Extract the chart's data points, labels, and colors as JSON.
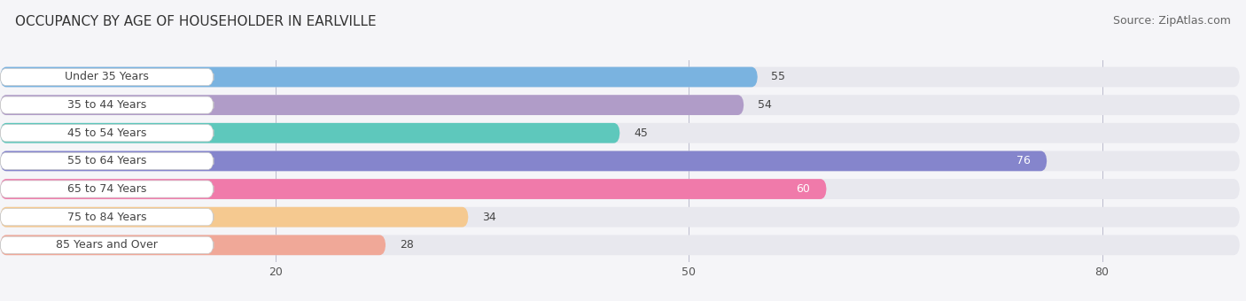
{
  "title": "OCCUPANCY BY AGE OF HOUSEHOLDER IN EARLVILLE",
  "source": "Source: ZipAtlas.com",
  "categories": [
    "Under 35 Years",
    "35 to 44 Years",
    "45 to 54 Years",
    "55 to 64 Years",
    "65 to 74 Years",
    "75 to 84 Years",
    "85 Years and Over"
  ],
  "values": [
    55,
    54,
    45,
    76,
    60,
    34,
    28
  ],
  "bar_colors": [
    "#7ab3e0",
    "#b09cc8",
    "#5ec8bc",
    "#8585cc",
    "#f07aaa",
    "#f5c990",
    "#f0a898"
  ],
  "bar_bg_color": "#e8e8ee",
  "label_bg_color": "#ffffff",
  "xlim_min": 0,
  "xlim_max": 90,
  "xticks": [
    20,
    50,
    80
  ],
  "title_fontsize": 11,
  "source_fontsize": 9,
  "label_fontsize": 9,
  "value_fontsize": 9,
  "bar_height": 0.72,
  "figsize": [
    14.06,
    3.4
  ],
  "dpi": 100,
  "bg_color": "#f5f5f8",
  "value_white_threshold": 58
}
